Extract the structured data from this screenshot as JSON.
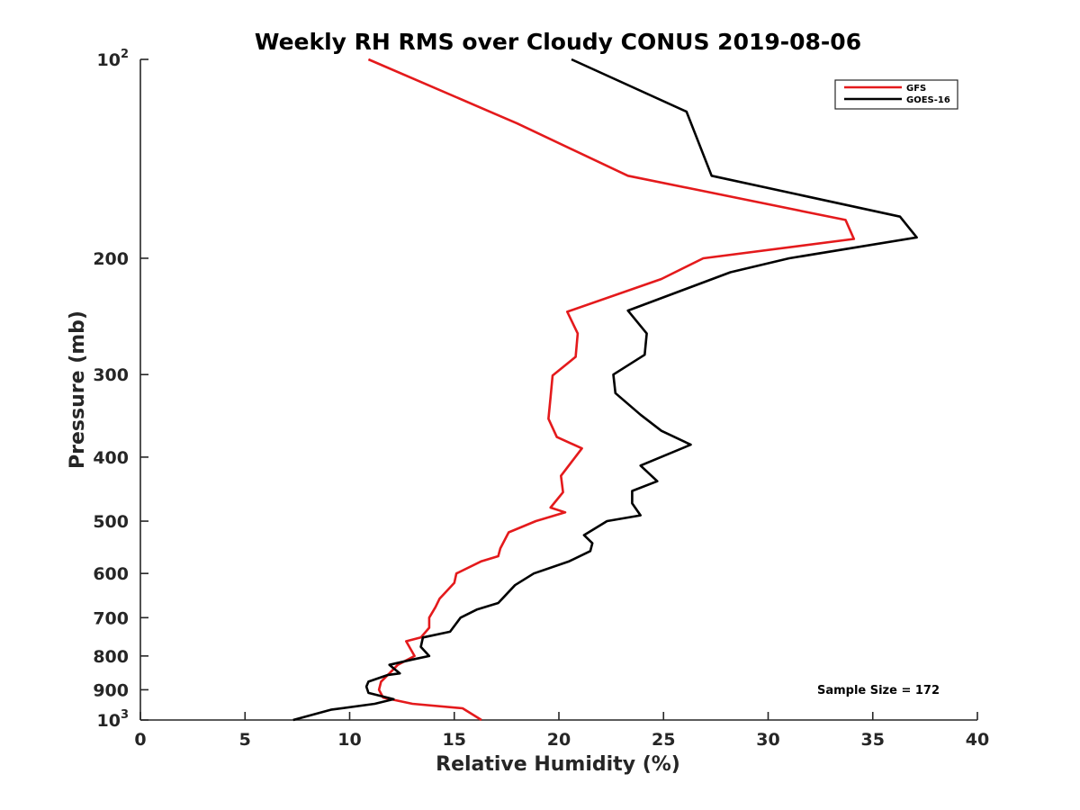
{
  "chart_data": {
    "type": "line",
    "title": "Weekly RH RMS over Cloudy CONUS 2019-08-06",
    "xlabel": "Relative Humidity (%)",
    "ylabel": "Pressure (mb)",
    "xlim": [
      0,
      40
    ],
    "ylim": [
      100,
      1000
    ],
    "y_scale": "log",
    "y_reversed": true,
    "grid": false,
    "legend_position": "top-right",
    "x_ticks": [
      0,
      5,
      10,
      15,
      20,
      25,
      30,
      35,
      40
    ],
    "y_ticks": [
      {
        "value": 100,
        "label": "10",
        "sup": "2"
      },
      {
        "value": 200,
        "label": "200",
        "sup": ""
      },
      {
        "value": 300,
        "label": "300",
        "sup": ""
      },
      {
        "value": 400,
        "label": "400",
        "sup": ""
      },
      {
        "value": 500,
        "label": "500",
        "sup": ""
      },
      {
        "value": 600,
        "label": "600",
        "sup": ""
      },
      {
        "value": 700,
        "label": "700",
        "sup": ""
      },
      {
        "value": 800,
        "label": "800",
        "sup": ""
      },
      {
        "value": 900,
        "label": "900",
        "sup": ""
      },
      {
        "value": 1000,
        "label": "10",
        "sup": "3"
      }
    ],
    "annotation": "Sample Size = 172",
    "series": [
      {
        "name": "GFS",
        "color": "#e41a1c",
        "points": [
          [
            10.9,
            100
          ],
          [
            18.0,
            125
          ],
          [
            23.3,
            150
          ],
          [
            33.7,
            175
          ],
          [
            34.1,
            187
          ],
          [
            26.9,
            200
          ],
          [
            24.9,
            215
          ],
          [
            20.4,
            241
          ],
          [
            20.9,
            260
          ],
          [
            20.8,
            282
          ],
          [
            19.7,
            301
          ],
          [
            19.6,
            325
          ],
          [
            19.5,
            350
          ],
          [
            19.9,
            373
          ],
          [
            21.1,
            388
          ],
          [
            20.1,
            427
          ],
          [
            20.2,
            452
          ],
          [
            19.6,
            477
          ],
          [
            20.3,
            485
          ],
          [
            18.9,
            500
          ],
          [
            17.6,
            520
          ],
          [
            17.2,
            550
          ],
          [
            17.1,
            565
          ],
          [
            16.3,
            575
          ],
          [
            15.1,
            600
          ],
          [
            15.0,
            620
          ],
          [
            14.6,
            640
          ],
          [
            14.3,
            655
          ],
          [
            14.1,
            675
          ],
          [
            13.8,
            700
          ],
          [
            13.8,
            725
          ],
          [
            13.4,
            750
          ],
          [
            12.7,
            760
          ],
          [
            13.1,
            800
          ],
          [
            12.3,
            825
          ],
          [
            11.9,
            850
          ],
          [
            11.5,
            875
          ],
          [
            11.4,
            900
          ],
          [
            11.6,
            925
          ],
          [
            13.0,
            945
          ],
          [
            15.4,
            960
          ],
          [
            16.3,
            1000
          ]
        ]
      },
      {
        "name": "GOES-16",
        "color": "#000000",
        "points": [
          [
            20.6,
            100
          ],
          [
            26.1,
            120
          ],
          [
            27.3,
            150
          ],
          [
            36.3,
            173
          ],
          [
            37.1,
            186
          ],
          [
            31.0,
            200
          ],
          [
            28.2,
            210
          ],
          [
            23.3,
            240
          ],
          [
            24.2,
            260
          ],
          [
            24.1,
            280
          ],
          [
            22.6,
            300
          ],
          [
            22.7,
            320
          ],
          [
            23.9,
            345
          ],
          [
            24.9,
            365
          ],
          [
            26.3,
            383
          ],
          [
            23.9,
            412
          ],
          [
            24.7,
            435
          ],
          [
            23.5,
            450
          ],
          [
            23.5,
            470
          ],
          [
            23.9,
            490
          ],
          [
            22.3,
            500
          ],
          [
            21.2,
            525
          ],
          [
            21.6,
            540
          ],
          [
            21.5,
            555
          ],
          [
            20.5,
            575
          ],
          [
            18.8,
            600
          ],
          [
            17.9,
            625
          ],
          [
            17.4,
            650
          ],
          [
            17.1,
            665
          ],
          [
            16.1,
            680
          ],
          [
            15.3,
            700
          ],
          [
            14.8,
            735
          ],
          [
            13.5,
            750
          ],
          [
            13.4,
            775
          ],
          [
            13.8,
            800
          ],
          [
            13.0,
            810
          ],
          [
            11.9,
            825
          ],
          [
            12.4,
            850
          ],
          [
            11.8,
            855
          ],
          [
            10.9,
            875
          ],
          [
            10.8,
            890
          ],
          [
            10.9,
            910
          ],
          [
            12.1,
            930
          ],
          [
            11.2,
            945
          ],
          [
            9.1,
            965
          ],
          [
            7.3,
            1000
          ]
        ]
      }
    ]
  }
}
